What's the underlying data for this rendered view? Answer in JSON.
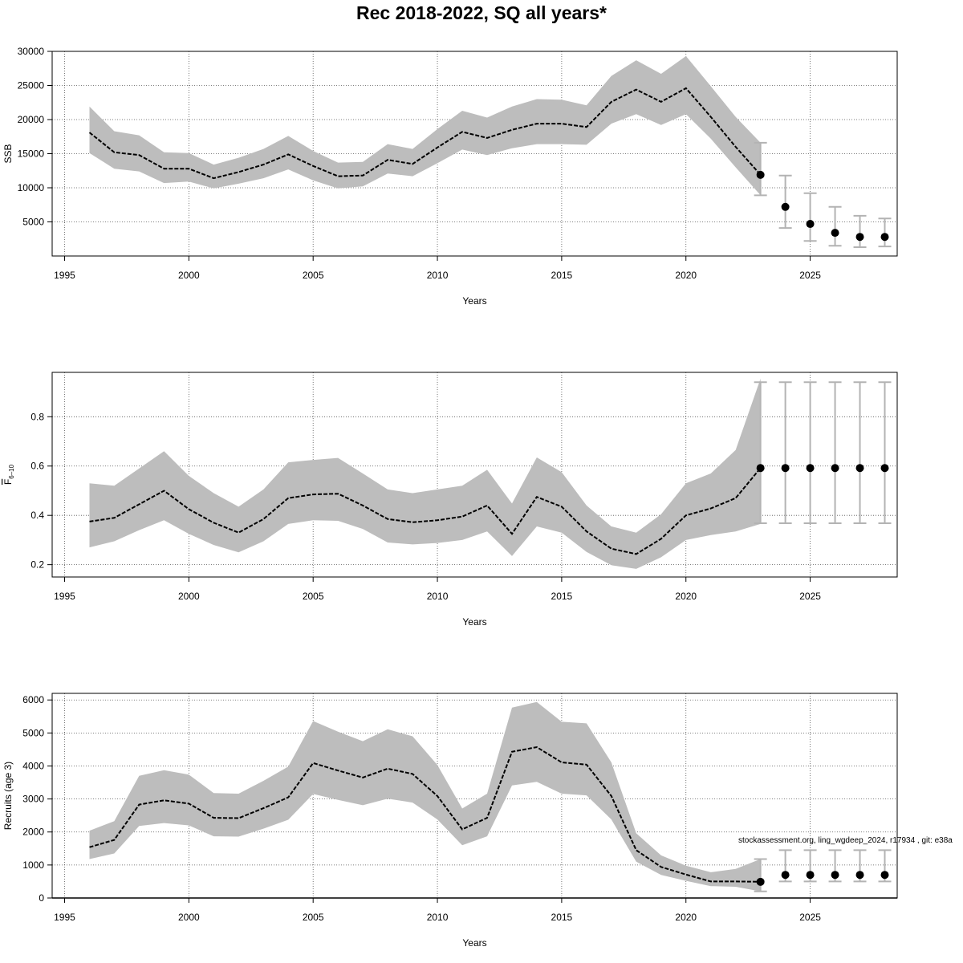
{
  "title": "Rec 2018-2022, SQ all years*",
  "footnote": "stockassessment.org, ling_wgdeep_2024, r17934 , git: e38a",
  "chart_data": [
    {
      "type": "line",
      "ylabel": "SSB",
      "xlabel": "Years",
      "xlim": [
        1994.5,
        2028.5
      ],
      "ylim": [
        0,
        30000
      ],
      "xticks": [
        1995,
        2000,
        2005,
        2010,
        2015,
        2020,
        2025
      ],
      "yticks": [
        5000,
        10000,
        15000,
        20000,
        25000,
        30000
      ],
      "grid": true,
      "historical": {
        "years": [
          1996,
          1997,
          1998,
          1999,
          2000,
          2001,
          2002,
          2003,
          2004,
          2005,
          2006,
          2007,
          2008,
          2009,
          2010,
          2011,
          2012,
          2013,
          2014,
          2015,
          2016,
          2017,
          2018,
          2019,
          2020,
          2021,
          2022,
          2023
        ],
        "estimate": [
          18100,
          15200,
          14800,
          12800,
          12800,
          11400,
          12300,
          13400,
          14900,
          13200,
          11700,
          11800,
          14100,
          13500,
          15900,
          18200,
          17300,
          18500,
          19400,
          19400,
          18900,
          22600,
          24400,
          22600,
          24600,
          20400,
          16000,
          11900
        ],
        "lower": [
          15100,
          12800,
          12400,
          10700,
          10900,
          9900,
          10600,
          11400,
          12700,
          11100,
          9900,
          10200,
          12100,
          11700,
          13600,
          15600,
          14800,
          15800,
          16400,
          16400,
          16300,
          19400,
          20800,
          19200,
          20800,
          17200,
          13000,
          8900
        ],
        "upper": [
          21900,
          18300,
          17700,
          15200,
          15100,
          13400,
          14400,
          15700,
          17600,
          15400,
          13700,
          13800,
          16400,
          15700,
          18600,
          21300,
          20300,
          21900,
          23000,
          22900,
          22100,
          26400,
          28700,
          26700,
          29300,
          24900,
          20400,
          16600
        ]
      },
      "forecast": {
        "years": [
          2023,
          2024,
          2025,
          2026,
          2027,
          2028
        ],
        "estimate": [
          11900,
          7200,
          4700,
          3400,
          2800,
          2800
        ],
        "lower": [
          8900,
          4100,
          2200,
          1500,
          1300,
          1400
        ],
        "upper": [
          16600,
          11800,
          9200,
          7200,
          5900,
          5500
        ]
      }
    },
    {
      "type": "line",
      "ylabel": "F6-10",
      "ylabel_main": "F",
      "ylabel_sub": "6–10",
      "xlabel": "Years",
      "xlim": [
        1994.5,
        2028.5
      ],
      "ylim": [
        0.15,
        0.98
      ],
      "xticks": [
        1995,
        2000,
        2005,
        2010,
        2015,
        2020,
        2025
      ],
      "yticks": [
        0.2,
        0.4,
        0.6,
        0.8
      ],
      "grid": true,
      "historical": {
        "years": [
          1996,
          1997,
          1998,
          1999,
          2000,
          2001,
          2002,
          2003,
          2004,
          2005,
          2006,
          2007,
          2008,
          2009,
          2010,
          2011,
          2012,
          2013,
          2014,
          2015,
          2016,
          2017,
          2018,
          2019,
          2020,
          2021,
          2022,
          2023
        ],
        "estimate": [
          0.375,
          0.39,
          0.445,
          0.5,
          0.425,
          0.37,
          0.33,
          0.385,
          0.47,
          0.485,
          0.488,
          0.44,
          0.385,
          0.372,
          0.38,
          0.395,
          0.44,
          0.325,
          0.475,
          0.435,
          0.335,
          0.265,
          0.243,
          0.305,
          0.4,
          0.428,
          0.47,
          0.592
        ],
        "lower": [
          0.27,
          0.295,
          0.34,
          0.38,
          0.325,
          0.28,
          0.25,
          0.295,
          0.365,
          0.38,
          0.378,
          0.345,
          0.29,
          0.282,
          0.288,
          0.3,
          0.335,
          0.235,
          0.355,
          0.33,
          0.252,
          0.198,
          0.183,
          0.23,
          0.3,
          0.32,
          0.335,
          0.365
        ],
        "upper": [
          0.53,
          0.52,
          0.59,
          0.66,
          0.56,
          0.49,
          0.435,
          0.505,
          0.615,
          0.625,
          0.633,
          0.57,
          0.505,
          0.49,
          0.505,
          0.52,
          0.585,
          0.448,
          0.635,
          0.575,
          0.44,
          0.355,
          0.33,
          0.405,
          0.53,
          0.57,
          0.665,
          0.955
        ]
      },
      "forecast": {
        "years": [
          2023,
          2024,
          2025,
          2026,
          2027,
          2028
        ],
        "estimate": [
          0.592,
          0.592,
          0.592,
          0.592,
          0.592,
          0.592
        ],
        "lower": [
          0.368,
          0.368,
          0.368,
          0.368,
          0.368,
          0.368
        ],
        "upper": [
          0.94,
          0.94,
          0.94,
          0.94,
          0.94,
          0.94
        ]
      }
    },
    {
      "type": "line",
      "ylabel": "Recruits (age 3)",
      "xlabel": "Years",
      "xlim": [
        1994.5,
        2028.5
      ],
      "ylim": [
        0,
        6200
      ],
      "xticks": [
        1995,
        2000,
        2005,
        2010,
        2015,
        2020,
        2025
      ],
      "yticks": [
        0,
        1000,
        2000,
        3000,
        4000,
        5000,
        6000
      ],
      "grid": true,
      "historical": {
        "years": [
          1996,
          1997,
          1998,
          1999,
          2000,
          2001,
          2002,
          2003,
          2004,
          2005,
          2006,
          2007,
          2008,
          2009,
          2010,
          2011,
          2012,
          2013,
          2014,
          2015,
          2016,
          2017,
          2018,
          2019,
          2020,
          2021,
          2022,
          2023
        ],
        "estimate": [
          1540,
          1760,
          2830,
          2960,
          2860,
          2430,
          2420,
          2720,
          3050,
          4090,
          3860,
          3650,
          3920,
          3760,
          3090,
          2080,
          2430,
          4430,
          4570,
          4110,
          4040,
          3090,
          1450,
          940,
          710,
          500,
          500,
          490
        ],
        "lower": [
          1180,
          1350,
          2180,
          2270,
          2200,
          1870,
          1860,
          2100,
          2370,
          3150,
          2970,
          2810,
          3010,
          2890,
          2380,
          1600,
          1870,
          3410,
          3520,
          3160,
          3110,
          2380,
          1100,
          700,
          520,
          360,
          340,
          200
        ],
        "upper": [
          2040,
          2330,
          3700,
          3870,
          3740,
          3180,
          3160,
          3550,
          3980,
          5360,
          5040,
          4750,
          5110,
          4900,
          4030,
          2710,
          3160,
          5770,
          5940,
          5340,
          5290,
          4110,
          1960,
          1290,
          980,
          780,
          880,
          1180
        ]
      },
      "forecast": {
        "years": [
          2023,
          2024,
          2025,
          2026,
          2027,
          2028
        ],
        "estimate": [
          490,
          700,
          700,
          700,
          700,
          700
        ],
        "lower": [
          200,
          500,
          500,
          500,
          500,
          500
        ],
        "upper": [
          1180,
          1450,
          1450,
          1450,
          1450,
          1450
        ]
      }
    }
  ]
}
